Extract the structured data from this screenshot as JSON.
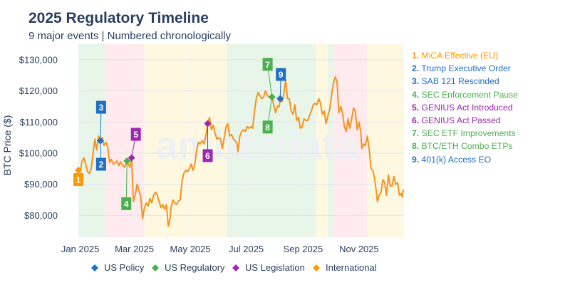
{
  "title": "2025 Regulatory Timeline",
  "subtitle": "9 major events | Numbered chronologically",
  "watermark": "amberdata",
  "colors": {
    "us_policy": "#1f6fc5",
    "us_regulatory": "#4caf50",
    "us_legislation": "#9c27b0",
    "international": "#ff9800",
    "line": "#f5931e",
    "band_green": "#e8f5e9",
    "band_red": "#ffebee",
    "band_yellow": "#fff8e1"
  },
  "legend": [
    {
      "label": "US Policy",
      "category": "us_policy"
    },
    {
      "label": "US Regulatory",
      "category": "us_regulatory"
    },
    {
      "label": "US Legislation",
      "category": "us_legislation"
    },
    {
      "label": "International",
      "category": "international"
    }
  ],
  "events": [
    {
      "num": "1.",
      "label": "MiCA Effective (EU)",
      "category": "international",
      "date": "2024-12-30",
      "price": 94500
    },
    {
      "num": "2.",
      "label": "Trump Executive Order",
      "category": "us_policy",
      "date": "2025-01-23",
      "price": 104000
    },
    {
      "num": "3.",
      "label": "SAB 121 Rescinded",
      "category": "us_policy",
      "date": "2025-01-23",
      "price": 104000
    },
    {
      "num": "4.",
      "label": "SEC Enforcement Pause",
      "category": "us_regulatory",
      "date": "2025-02-21",
      "price": 97500
    },
    {
      "num": "5.",
      "label": "GENIUS Act Introduced",
      "category": "us_legislation",
      "date": "2025-02-26",
      "price": 98500
    },
    {
      "num": "6.",
      "label": "GENIUS Act Passed",
      "category": "us_legislation",
      "date": "2025-05-20",
      "price": 109500
    },
    {
      "num": "7.",
      "label": "SEC ETF Improvements",
      "category": "us_regulatory",
      "date": "2025-07-29",
      "price": 118000
    },
    {
      "num": "8.",
      "label": "BTC/ETH Combo ETPs",
      "category": "us_regulatory",
      "date": "2025-07-29",
      "price": 118000
    },
    {
      "num": "9.",
      "label": "401(k) Access EO",
      "category": "us_policy",
      "date": "2025-08-07",
      "price": 117500
    }
  ],
  "chart_data": {
    "type": "line",
    "title": "2025 Regulatory Timeline",
    "subtitle": "9 major events | Numbered chronologically",
    "xlabel": "",
    "ylabel": "BTC Price ($)",
    "xlim": [
      "2024-12-30",
      "2025-12-20"
    ],
    "ylim": [
      73000,
      135000
    ],
    "x_ticks": [
      {
        "date": "2025-01-01",
        "label": "Jan 2025"
      },
      {
        "date": "2025-03-01",
        "label": "Mar 2025"
      },
      {
        "date": "2025-05-01",
        "label": "May 2025"
      },
      {
        "date": "2025-07-01",
        "label": "Jul 2025"
      },
      {
        "date": "2025-09-01",
        "label": "Sep 2025"
      },
      {
        "date": "2025-11-01",
        "label": "Nov 2025"
      }
    ],
    "y_ticks": [
      {
        "value": 80000,
        "label": "$80,000"
      },
      {
        "value": 90000,
        "label": "$90,000"
      },
      {
        "value": 100000,
        "label": "$100,000"
      },
      {
        "value": 110000,
        "label": "$110,000"
      },
      {
        "value": 120000,
        "label": "$120,000"
      },
      {
        "value": 130000,
        "label": "$130,000"
      }
    ],
    "grid": true,
    "legend_position": "bottom",
    "shaded_periods": [
      {
        "start": "2024-12-30",
        "end": "2025-01-28",
        "color": "green"
      },
      {
        "start": "2025-01-28",
        "end": "2025-03-12",
        "color": "red"
      },
      {
        "start": "2025-03-12",
        "end": "2025-06-10",
        "color": "yellow"
      },
      {
        "start": "2025-06-10",
        "end": "2025-09-15",
        "color": "green"
      },
      {
        "start": "2025-09-15",
        "end": "2025-09-28",
        "color": "yellow"
      },
      {
        "start": "2025-09-28",
        "end": "2025-10-04",
        "color": "green"
      },
      {
        "start": "2025-10-04",
        "end": "2025-11-10",
        "color": "red"
      },
      {
        "start": "2025-11-10",
        "end": "2025-12-20",
        "color": "yellow"
      }
    ],
    "series": [
      {
        "name": "BTC Price",
        "points": [
          [
            "2024-12-30",
            94500
          ],
          [
            "2025-01-01",
            94000
          ],
          [
            "2025-01-03",
            97500
          ],
          [
            "2025-01-05",
            98500
          ],
          [
            "2025-01-07",
            96500
          ],
          [
            "2025-01-09",
            94000
          ],
          [
            "2025-01-11",
            93500
          ],
          [
            "2025-01-13",
            95000
          ],
          [
            "2025-01-15",
            100000
          ],
          [
            "2025-01-17",
            104500
          ],
          [
            "2025-01-19",
            101000
          ],
          [
            "2025-01-21",
            105500
          ],
          [
            "2025-01-23",
            104000
          ],
          [
            "2025-01-25",
            105000
          ],
          [
            "2025-01-27",
            102500
          ],
          [
            "2025-01-29",
            103500
          ],
          [
            "2025-01-31",
            102000
          ],
          [
            "2025-02-02",
            97000
          ],
          [
            "2025-02-04",
            98000
          ],
          [
            "2025-02-06",
            96500
          ],
          [
            "2025-02-08",
            96800
          ],
          [
            "2025-02-10",
            97500
          ],
          [
            "2025-02-12",
            96000
          ],
          [
            "2025-02-14",
            97200
          ],
          [
            "2025-02-16",
            96300
          ],
          [
            "2025-02-18",
            95500
          ],
          [
            "2025-02-20",
            96500
          ],
          [
            "2025-02-21",
            97500
          ],
          [
            "2025-02-24",
            95500
          ],
          [
            "2025-02-26",
            98500
          ],
          [
            "2025-02-28",
            84500
          ],
          [
            "2025-03-02",
            86500
          ],
          [
            "2025-03-04",
            90000
          ],
          [
            "2025-03-06",
            88000
          ],
          [
            "2025-03-08",
            86000
          ],
          [
            "2025-03-10",
            79000
          ],
          [
            "2025-03-12",
            82500
          ],
          [
            "2025-03-14",
            84000
          ],
          [
            "2025-03-16",
            83000
          ],
          [
            "2025-03-18",
            85500
          ],
          [
            "2025-03-20",
            84000
          ],
          [
            "2025-03-22",
            86500
          ],
          [
            "2025-03-24",
            87500
          ],
          [
            "2025-03-26",
            86500
          ],
          [
            "2025-03-28",
            84500
          ],
          [
            "2025-03-30",
            82500
          ],
          [
            "2025-04-01",
            83500
          ],
          [
            "2025-04-03",
            82000
          ],
          [
            "2025-04-05",
            83500
          ],
          [
            "2025-04-07",
            76500
          ],
          [
            "2025-04-09",
            79000
          ],
          [
            "2025-04-10",
            82500
          ],
          [
            "2025-04-12",
            85000
          ],
          [
            "2025-04-14",
            84000
          ],
          [
            "2025-04-16",
            83500
          ],
          [
            "2025-04-18",
            84500
          ],
          [
            "2025-04-20",
            85000
          ],
          [
            "2025-04-22",
            91000
          ],
          [
            "2025-04-24",
            93500
          ],
          [
            "2025-04-26",
            94500
          ],
          [
            "2025-04-28",
            94000
          ],
          [
            "2025-04-30",
            95000
          ],
          [
            "2025-05-02",
            96500
          ],
          [
            "2025-05-04",
            94500
          ],
          [
            "2025-05-06",
            96500
          ],
          [
            "2025-05-08",
            101000
          ],
          [
            "2025-05-10",
            103500
          ],
          [
            "2025-05-12",
            103000
          ],
          [
            "2025-05-14",
            104000
          ],
          [
            "2025-05-16",
            103000
          ],
          [
            "2025-05-18",
            105500
          ],
          [
            "2025-05-20",
            109500
          ],
          [
            "2025-05-22",
            111500
          ],
          [
            "2025-05-24",
            107500
          ],
          [
            "2025-05-26",
            109000
          ],
          [
            "2025-05-28",
            106500
          ],
          [
            "2025-05-30",
            104500
          ],
          [
            "2025-06-01",
            105000
          ],
          [
            "2025-06-03",
            104500
          ],
          [
            "2025-06-05",
            101500
          ],
          [
            "2025-06-07",
            105000
          ],
          [
            "2025-06-09",
            108500
          ],
          [
            "2025-06-11",
            109500
          ],
          [
            "2025-06-13",
            105500
          ],
          [
            "2025-06-15",
            106000
          ],
          [
            "2025-06-17",
            104500
          ],
          [
            "2025-06-19",
            104000
          ],
          [
            "2025-06-21",
            103000
          ],
          [
            "2025-06-22",
            100500
          ],
          [
            "2025-06-24",
            105500
          ],
          [
            "2025-06-26",
            107000
          ],
          [
            "2025-06-28",
            107500
          ],
          [
            "2025-06-30",
            107000
          ],
          [
            "2025-07-02",
            108500
          ],
          [
            "2025-07-04",
            108000
          ],
          [
            "2025-07-06",
            108500
          ],
          [
            "2025-07-08",
            108000
          ],
          [
            "2025-07-10",
            113500
          ],
          [
            "2025-07-12",
            117500
          ],
          [
            "2025-07-14",
            119500
          ],
          [
            "2025-07-16",
            118500
          ],
          [
            "2025-07-18",
            117500
          ],
          [
            "2025-07-20",
            118000
          ],
          [
            "2025-07-22",
            120000
          ],
          [
            "2025-07-24",
            118500
          ],
          [
            "2025-07-26",
            118000
          ],
          [
            "2025-07-29",
            118000
          ],
          [
            "2025-07-31",
            115500
          ],
          [
            "2025-08-02",
            113000
          ],
          [
            "2025-08-04",
            115000
          ],
          [
            "2025-08-06",
            115000
          ],
          [
            "2025-08-07",
            117500
          ],
          [
            "2025-08-09",
            116500
          ],
          [
            "2025-08-11",
            119000
          ],
          [
            "2025-08-13",
            123500
          ],
          [
            "2025-08-15",
            117500
          ],
          [
            "2025-08-17",
            117500
          ],
          [
            "2025-08-19",
            113500
          ],
          [
            "2025-08-21",
            112500
          ],
          [
            "2025-08-23",
            115500
          ],
          [
            "2025-08-25",
            110500
          ],
          [
            "2025-08-27",
            111500
          ],
          [
            "2025-08-29",
            108000
          ],
          [
            "2025-08-31",
            108500
          ],
          [
            "2025-09-02",
            111000
          ],
          [
            "2025-09-04",
            110500
          ],
          [
            "2025-09-06",
            110500
          ],
          [
            "2025-09-08",
            112000
          ],
          [
            "2025-09-10",
            113500
          ],
          [
            "2025-09-12",
            115500
          ],
          [
            "2025-09-14",
            116000
          ],
          [
            "2025-09-16",
            115500
          ],
          [
            "2025-09-18",
            117500
          ],
          [
            "2025-09-20",
            116000
          ],
          [
            "2025-09-22",
            112500
          ],
          [
            "2025-09-24",
            113500
          ],
          [
            "2025-09-26",
            109500
          ],
          [
            "2025-09-28",
            112000
          ],
          [
            "2025-09-30",
            114000
          ],
          [
            "2025-10-02",
            118500
          ],
          [
            "2025-10-04",
            122500
          ],
          [
            "2025-10-06",
            124500
          ],
          [
            "2025-10-08",
            123000
          ],
          [
            "2025-10-10",
            113000
          ],
          [
            "2025-10-12",
            115000
          ],
          [
            "2025-10-14",
            113000
          ],
          [
            "2025-10-16",
            108500
          ],
          [
            "2025-10-18",
            107000
          ],
          [
            "2025-10-20",
            111000
          ],
          [
            "2025-10-22",
            108000
          ],
          [
            "2025-10-24",
            111000
          ],
          [
            "2025-10-26",
            114500
          ],
          [
            "2025-10-28",
            113500
          ],
          [
            "2025-10-30",
            107500
          ],
          [
            "2025-11-01",
            110000
          ],
          [
            "2025-11-03",
            106500
          ],
          [
            "2025-11-04",
            101500
          ],
          [
            "2025-11-06",
            103000
          ],
          [
            "2025-11-08",
            102500
          ],
          [
            "2025-11-10",
            105500
          ],
          [
            "2025-11-12",
            101500
          ],
          [
            "2025-11-14",
            95000
          ],
          [
            "2025-11-16",
            94500
          ],
          [
            "2025-11-18",
            92000
          ],
          [
            "2025-11-20",
            87000
          ],
          [
            "2025-11-21",
            84500
          ],
          [
            "2025-11-23",
            86500
          ],
          [
            "2025-11-25",
            87500
          ],
          [
            "2025-11-27",
            91500
          ],
          [
            "2025-11-29",
            90500
          ],
          [
            "2025-12-01",
            86500
          ],
          [
            "2025-12-03",
            93000
          ],
          [
            "2025-12-05",
            89500
          ],
          [
            "2025-12-07",
            89500
          ],
          [
            "2025-12-09",
            92500
          ],
          [
            "2025-12-11",
            90000
          ],
          [
            "2025-12-13",
            90500
          ],
          [
            "2025-12-15",
            86500
          ],
          [
            "2025-12-17",
            87000
          ],
          [
            "2025-12-18",
            86000
          ],
          [
            "2025-12-19",
            88000
          ],
          [
            "2025-12-20",
            88000
          ]
        ]
      }
    ]
  }
}
